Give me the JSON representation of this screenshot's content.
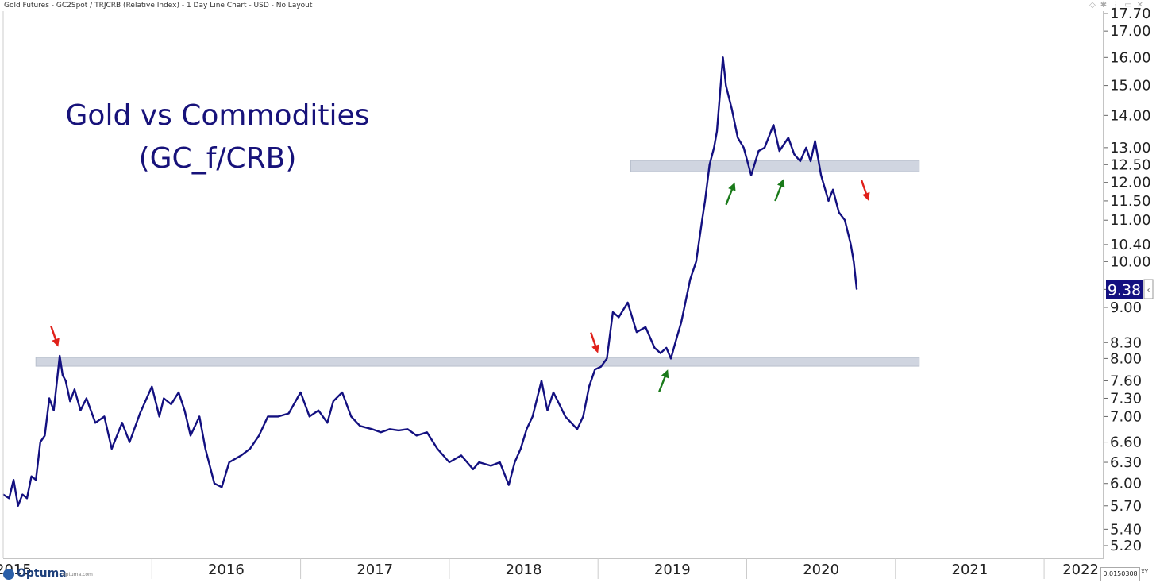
{
  "header": {
    "title": "Gold Futures - GC2Spot / TRJCRB (Relative Index) - 1 Day Line Chart - USD - No Layout",
    "icons": [
      "diamond-icon",
      "pin-icon",
      "more-icon",
      "window-icon",
      "close-icon"
    ]
  },
  "annotation": {
    "line1": "Gold vs Commodities",
    "line2": "(GC_f/CRB)"
  },
  "last_value_label": "9.38",
  "footer": {
    "brand": "Optuma",
    "brand_url": "optuma.com",
    "scale_value": "0.0150308",
    "xy_label": "XY"
  },
  "colors": {
    "line": "#131080",
    "zone": "#d0d5e0",
    "arrow_red": "#e0201a",
    "arrow_green": "#1a7a1a",
    "badge": "#131080"
  },
  "chart_data": {
    "type": "line",
    "scale": "log",
    "title": "Gold vs Commodities (GC_f/CRB)",
    "xlabel": "",
    "ylabel": "",
    "xlim": [
      2015.0,
      2022.4
    ],
    "ylim": [
      5.05,
      17.8
    ],
    "x_ticks": [
      "2015",
      "2016",
      "2017",
      "2018",
      "2019",
      "2020",
      "2021",
      "2022"
    ],
    "y_ticks": [
      "5.20",
      "5.40",
      "5.70",
      "6.00",
      "6.30",
      "6.60",
      "7.00",
      "7.30",
      "7.60",
      "8.00",
      "8.30",
      "9.00",
      "9.38",
      "10.00",
      "10.40",
      "11.00",
      "11.50",
      "12.00",
      "12.50",
      "13.00",
      "14.00",
      "15.00",
      "16.00",
      "17.00",
      "17.70"
    ],
    "last_value": 9.38,
    "grid": false,
    "legend": "none",
    "series": [
      {
        "x": [
          2015.0,
          2015.04,
          2015.07,
          2015.1,
          2015.13,
          2015.16,
          2015.19,
          2015.22,
          2015.25,
          2015.28,
          2015.31,
          2015.34,
          2015.38,
          2015.4,
          2015.42,
          2015.45,
          2015.48,
          2015.52,
          2015.56,
          2015.62,
          2015.68,
          2015.73,
          2015.8,
          2015.85,
          2015.92,
          2016.0,
          2016.05,
          2016.08,
          2016.13,
          2016.18,
          2016.22,
          2016.26,
          2016.32,
          2016.36,
          2016.42,
          2016.47,
          2016.52,
          2016.6,
          2016.66,
          2016.72,
          2016.78,
          2016.85,
          2016.92,
          2017.0,
          2017.06,
          2017.12,
          2017.18,
          2017.22,
          2017.28,
          2017.34,
          2017.4,
          2017.48,
          2017.54,
          2017.6,
          2017.66,
          2017.72,
          2017.78,
          2017.85,
          2017.92,
          2018.0,
          2018.08,
          2018.16,
          2018.2,
          2018.28,
          2018.34,
          2018.4,
          2018.44,
          2018.48,
          2018.52,
          2018.56,
          2018.62,
          2018.66,
          2018.7,
          2018.74,
          2018.78,
          2018.82,
          2018.86,
          2018.9,
          2018.94,
          2018.98,
          2019.02,
          2019.06,
          2019.1,
          2019.14,
          2019.2,
          2019.26,
          2019.32,
          2019.38,
          2019.42,
          2019.46,
          2019.49,
          2019.52,
          2019.56,
          2019.62,
          2019.66,
          2019.7,
          2019.72,
          2019.75,
          2019.78,
          2019.8,
          2019.84,
          2019.86,
          2019.9,
          2019.94,
          2019.98,
          2020.03,
          2020.08,
          2020.12,
          2020.18,
          2020.22,
          2020.28,
          2020.32,
          2020.36,
          2020.4,
          2020.43,
          2020.46,
          2020.5,
          2020.55,
          2020.58,
          2020.62,
          2020.66,
          2020.7,
          2020.72,
          2020.74
        ],
        "values": [
          5.85,
          5.8,
          6.05,
          5.7,
          5.85,
          5.8,
          6.1,
          6.05,
          6.6,
          6.7,
          7.3,
          7.1,
          8.05,
          7.7,
          7.6,
          7.25,
          7.45,
          7.1,
          7.3,
          6.9,
          7.0,
          6.5,
          6.9,
          6.6,
          7.05,
          7.5,
          7.0,
          7.3,
          7.2,
          7.4,
          7.1,
          6.7,
          7.0,
          6.5,
          6.0,
          5.95,
          6.3,
          6.4,
          6.5,
          6.7,
          7.0,
          7.0,
          7.05,
          7.4,
          7.0,
          7.1,
          6.9,
          7.25,
          7.4,
          7.0,
          6.85,
          6.8,
          6.75,
          6.8,
          6.78,
          6.8,
          6.7,
          6.75,
          6.5,
          6.3,
          6.4,
          6.2,
          6.3,
          6.25,
          6.3,
          5.98,
          6.3,
          6.5,
          6.8,
          7.0,
          7.6,
          7.1,
          7.4,
          7.2,
          7.0,
          6.9,
          6.8,
          7.0,
          7.5,
          7.8,
          7.85,
          8.0,
          8.9,
          8.8,
          9.1,
          8.5,
          8.6,
          8.2,
          8.1,
          8.2,
          8.0,
          8.3,
          8.7,
          9.6,
          10.0,
          11.0,
          11.5,
          12.5,
          13.0,
          13.5,
          16.0,
          15.0,
          14.2,
          13.3,
          13.0,
          12.2,
          12.9,
          13.0,
          13.7,
          12.9,
          13.3,
          12.8,
          12.6,
          13.0,
          12.6,
          13.2,
          12.2,
          11.5,
          11.8,
          11.2,
          11.0,
          10.4,
          10.0,
          9.38
        ]
      }
    ],
    "zones": [
      {
        "x_start": 2015.22,
        "x_end": 2021.16,
        "y_low": 7.86,
        "y_high": 8.02
      },
      {
        "x_start": 2019.22,
        "x_end": 2021.16,
        "y_low": 12.3,
        "y_high": 12.62
      }
    ],
    "arrows": [
      {
        "color": "red",
        "direction": "down",
        "x": 2015.37,
        "y": 8.22
      },
      {
        "color": "red",
        "direction": "down",
        "x": 2019.0,
        "y": 8.1
      },
      {
        "color": "green",
        "direction": "up",
        "x": 2019.47,
        "y": 7.8
      },
      {
        "color": "green",
        "direction": "up",
        "x": 2019.92,
        "y": 12.0
      },
      {
        "color": "green",
        "direction": "up",
        "x": 2020.25,
        "y": 12.1
      },
      {
        "color": "red",
        "direction": "down",
        "x": 2020.82,
        "y": 11.5
      }
    ]
  }
}
